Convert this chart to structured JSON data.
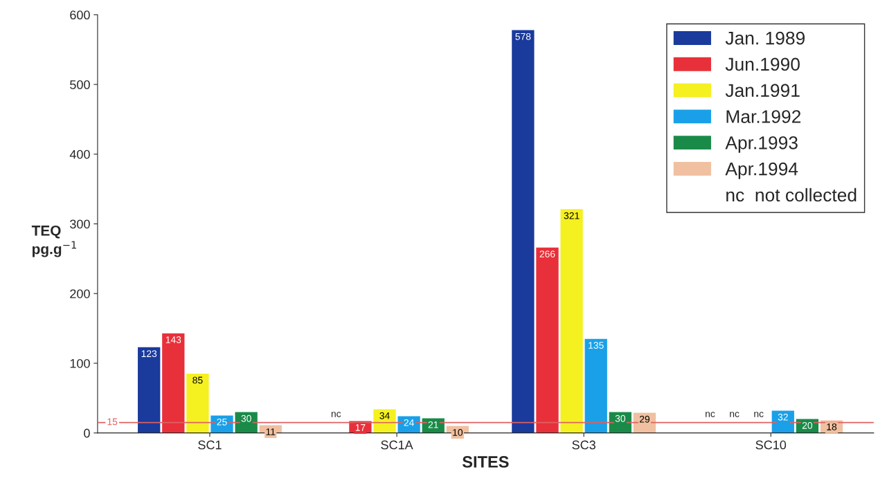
{
  "chart_data": {
    "type": "bar",
    "xlabel": "SITES",
    "ylabel": "TEQ\npg.g$^{−1}$",
    "categories": [
      "SC1",
      "SC1A",
      "SC3",
      "SC10"
    ],
    "series": [
      {
        "name": "Jan. 1989",
        "color": "#1a3a9c",
        "values": [
          123,
          null,
          578,
          null
        ],
        "value_labels": [
          "123",
          "nc",
          "578",
          "nc"
        ]
      },
      {
        "name": "Jun.1990",
        "color": "#e8303a",
        "values": [
          143,
          17,
          266,
          null
        ],
        "value_labels": [
          "143",
          "17",
          "266",
          "nc"
        ]
      },
      {
        "name": "Jan.1991",
        "color": "#f5f020",
        "values": [
          85,
          34,
          321,
          null
        ],
        "value_labels": [
          "85",
          "34",
          "321",
          "nc"
        ]
      },
      {
        "name": "Mar.1992",
        "color": "#1aa0e8",
        "values": [
          25,
          24,
          135,
          32
        ],
        "value_labels": [
          "25",
          "24",
          "135",
          "32"
        ]
      },
      {
        "name": "Apr.1993",
        "color": "#1a8a48",
        "values": [
          30,
          21,
          30,
          20
        ],
        "value_labels": [
          "30",
          "21",
          "30",
          "20"
        ]
      },
      {
        "name": "Apr.1994",
        "color": "#f0c0a0",
        "values": [
          11,
          10,
          29,
          18
        ],
        "value_labels": [
          "11",
          "10",
          "29",
          "18"
        ]
      }
    ],
    "ylim": [
      0,
      600
    ],
    "yticks": [
      0,
      100,
      200,
      300,
      400,
      500,
      600
    ],
    "ref_lines": [
      {
        "axis": "y",
        "value": 15,
        "label": "15",
        "color": "#e06060"
      }
    ],
    "annotations": [
      "nc  not collected"
    ],
    "grid": false,
    "legend": "top right"
  }
}
